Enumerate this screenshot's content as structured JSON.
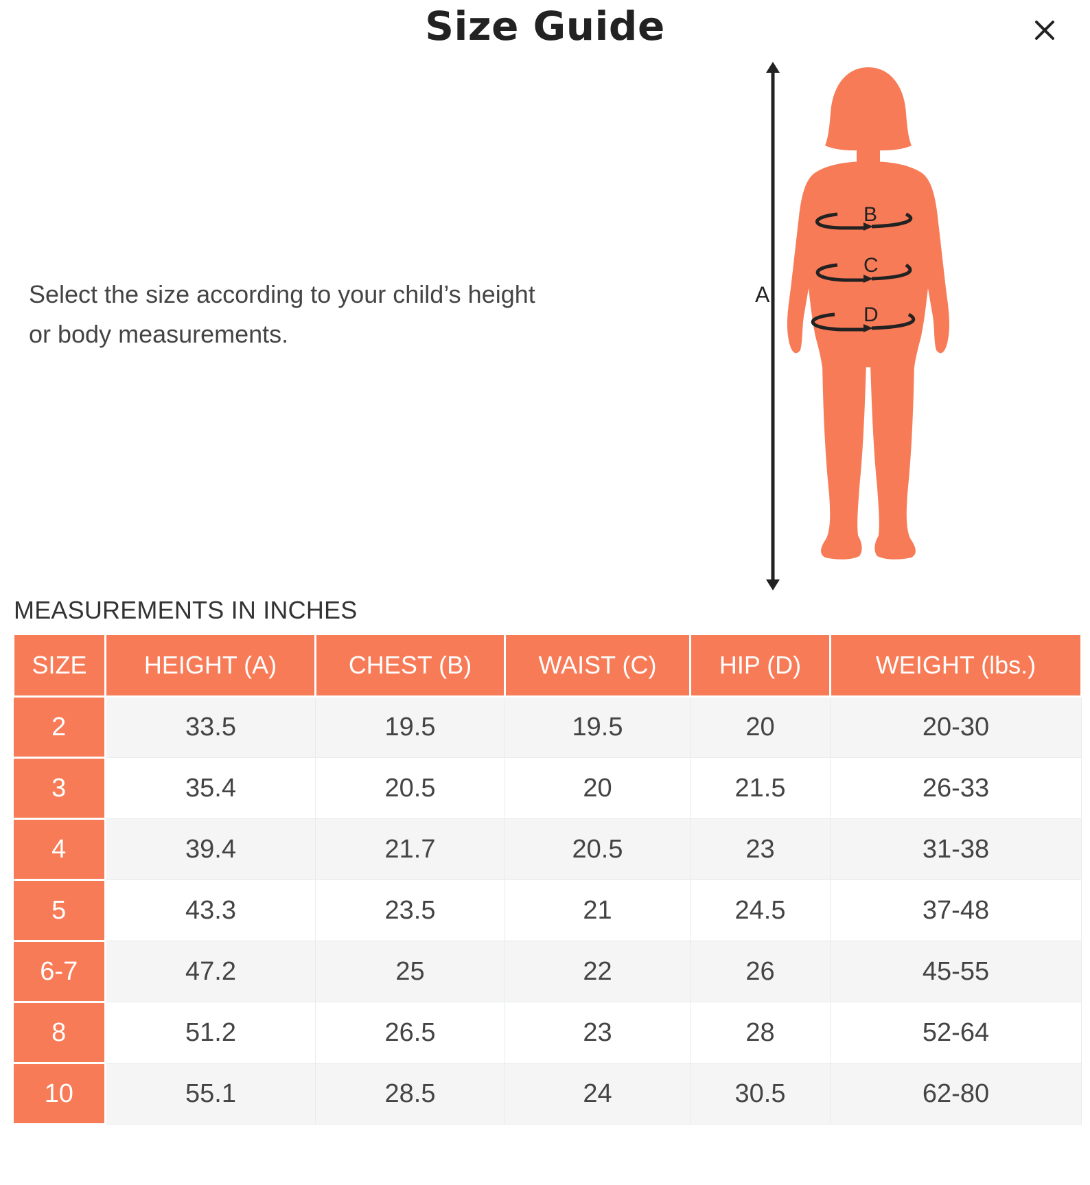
{
  "title": "Size Guide",
  "close_label": "×",
  "intro": {
    "line1": "Select the size according to your child’s height",
    "line2": "or body measurements."
  },
  "figure": {
    "labels": {
      "a": "A",
      "b": "B",
      "c": "C",
      "d": "D"
    },
    "colors": {
      "body": "#f87b57",
      "lines": "#222222"
    }
  },
  "section_label": "MEASUREMENTS IN INCHES",
  "table": {
    "headers": [
      "SIZE",
      "HEIGHT (A)",
      "CHEST (B)",
      "WAIST (C)",
      "HIP (D)",
      "WEIGHT (lbs.)"
    ],
    "rows": [
      [
        "2",
        "33.5",
        "19.5",
        "19.5",
        "20",
        "20-30"
      ],
      [
        "3",
        "35.4",
        "20.5",
        "20",
        "21.5",
        "26-33"
      ],
      [
        "4",
        "39.4",
        "21.7",
        "20.5",
        "23",
        "31-38"
      ],
      [
        "5",
        "43.3",
        "23.5",
        "21",
        "24.5",
        "37-48"
      ],
      [
        "6-7",
        "47.2",
        "25",
        "22",
        "26",
        "45-55"
      ],
      [
        "8",
        "51.2",
        "26.5",
        "23",
        "28",
        "52-64"
      ],
      [
        "10",
        "55.1",
        "28.5",
        "24",
        "30.5",
        "62-80"
      ]
    ]
  },
  "colors": {
    "accent": "#f87b57",
    "row_alt": "#f5f5f5",
    "text": "#444444"
  }
}
